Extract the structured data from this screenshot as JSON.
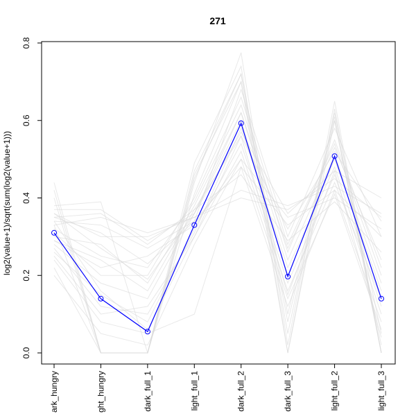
{
  "chart_data": {
    "type": "line",
    "title": "271",
    "xlabel": "",
    "ylabel": "log2(value+1)/sqrt(sum(log2(value+1)))",
    "categories": [
      "dark_hungry",
      "light_hungry",
      "dark_full_1",
      "light_full_1",
      "dark_full_2",
      "dark_full_3",
      "light_full_2",
      "light_full_3"
    ],
    "category_labels_visible": [
      "ark_hungry",
      "ght_hungry",
      "dark_full_1",
      "light_full_1",
      "dark_full_2",
      "dark_full_3",
      "light_full_2",
      "light_full_3"
    ],
    "ylim": [
      0,
      0.8
    ],
    "yticks": [
      0.0,
      0.2,
      0.4,
      0.6,
      0.8
    ],
    "ytick_labels": [
      "0.0",
      "0.2",
      "0.4",
      "0.6",
      "0.8"
    ],
    "grid": false,
    "legend": "none",
    "colors": {
      "highlight": "#0000ff",
      "background_lines": "#d9d9d9",
      "axis": "#000000"
    },
    "highlight_series": {
      "values": [
        0.31,
        0.14,
        0.055,
        0.33,
        0.593,
        0.197,
        0.508,
        0.14
      ]
    },
    "background_series": [
      {
        "values": [
          0.44,
          0.0,
          0.0,
          0.44,
          0.775,
          0.02,
          0.65,
          0.0
        ]
      },
      {
        "values": [
          0.42,
          0.0,
          0.0,
          0.49,
          0.74,
          0.0,
          0.63,
          0.0
        ]
      },
      {
        "values": [
          0.4,
          0.0,
          0.0,
          0.47,
          0.72,
          0.05,
          0.62,
          0.05
        ]
      },
      {
        "values": [
          0.38,
          0.39,
          0.0,
          0.41,
          0.7,
          0.0,
          0.6,
          0.0
        ]
      },
      {
        "values": [
          0.37,
          0.37,
          0.29,
          0.36,
          0.57,
          0.36,
          0.47,
          0.4
        ]
      },
      {
        "values": [
          0.36,
          0.3,
          0.3,
          0.35,
          0.4,
          0.37,
          0.45,
          0.35
        ]
      },
      {
        "values": [
          0.35,
          0.36,
          0.28,
          0.37,
          0.56,
          0.32,
          0.52,
          0.34
        ]
      },
      {
        "values": [
          0.34,
          0.33,
          0.27,
          0.34,
          0.68,
          0.3,
          0.58,
          0.3
        ]
      },
      {
        "values": [
          0.33,
          0.35,
          0.31,
          0.35,
          0.42,
          0.38,
          0.43,
          0.36
        ]
      },
      {
        "values": [
          0.32,
          0.25,
          0.22,
          0.39,
          0.64,
          0.26,
          0.55,
          0.22
        ]
      },
      {
        "values": [
          0.31,
          0.2,
          0.2,
          0.4,
          0.66,
          0.28,
          0.54,
          0.2
        ]
      },
      {
        "values": [
          0.3,
          0.28,
          0.18,
          0.38,
          0.62,
          0.24,
          0.51,
          0.18
        ]
      },
      {
        "values": [
          0.29,
          0.22,
          0.25,
          0.33,
          0.5,
          0.35,
          0.4,
          0.32
        ]
      },
      {
        "values": [
          0.28,
          0.18,
          0.14,
          0.36,
          0.6,
          0.2,
          0.5,
          0.16
        ]
      },
      {
        "values": [
          0.27,
          0.12,
          0.1,
          0.31,
          0.58,
          0.22,
          0.48,
          0.12
        ]
      },
      {
        "values": [
          0.26,
          0.15,
          0.08,
          0.32,
          0.54,
          0.18,
          0.46,
          0.1
        ]
      },
      {
        "values": [
          0.25,
          0.1,
          0.12,
          0.3,
          0.52,
          0.16,
          0.44,
          0.14
        ]
      },
      {
        "values": [
          0.24,
          0.08,
          0.05,
          0.1,
          0.48,
          0.12,
          0.42,
          0.08
        ]
      },
      {
        "values": [
          0.22,
          0.0,
          0.0,
          0.46,
          0.7,
          0.08,
          0.6,
          0.02
        ]
      },
      {
        "values": [
          0.2,
          0.05,
          0.02,
          0.28,
          0.5,
          0.14,
          0.41,
          0.06
        ]
      },
      {
        "values": [
          0.33,
          0.0,
          0.0,
          0.45,
          0.72,
          0.1,
          0.61,
          0.0
        ]
      },
      {
        "values": [
          0.29,
          0.24,
          0.16,
          0.37,
          0.46,
          0.29,
          0.39,
          0.26
        ]
      },
      {
        "values": [
          0.35,
          0.31,
          0.23,
          0.34,
          0.48,
          0.33,
          0.42,
          0.3
        ]
      },
      {
        "values": [
          0.36,
          0.27,
          0.19,
          0.36,
          0.62,
          0.27,
          0.53,
          0.24
        ]
      },
      {
        "values": [
          0.34,
          0.16,
          0.06,
          0.3,
          0.56,
          0.15,
          0.47,
          0.04
        ]
      }
    ]
  }
}
